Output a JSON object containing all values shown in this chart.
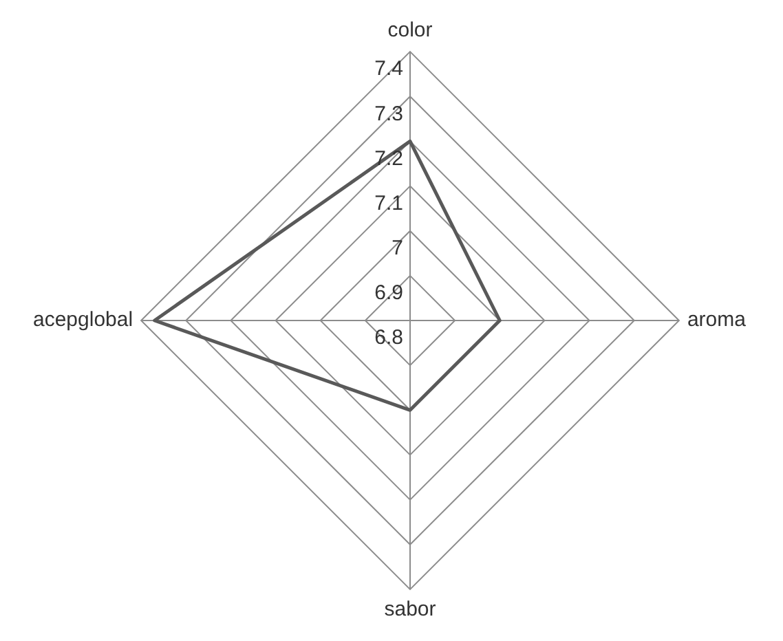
{
  "chart_data": {
    "type": "radar",
    "categories": [
      "color",
      "aroma",
      "sabor",
      "acepglobal"
    ],
    "series": [
      {
        "color": "#595959",
        "values": [
          7.2,
          7.0,
          7.0,
          7.37
        ]
      }
    ],
    "ylim": [
      6.8,
      7.4
    ],
    "yticks": [
      6.8,
      6.9,
      7,
      7.1,
      7.2,
      7.3,
      7.4
    ],
    "grid": true,
    "legend": false,
    "marker": "none",
    "line_style": "solid"
  }
}
